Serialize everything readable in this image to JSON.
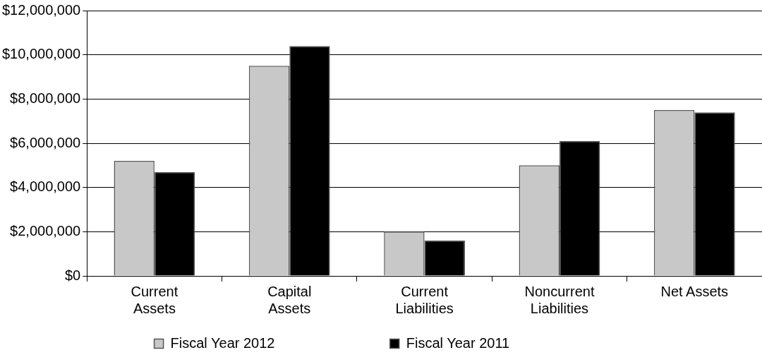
{
  "chart_data": {
    "type": "bar",
    "categories": [
      "Current Assets",
      "Capital Assets",
      "Current Liabilities",
      "Noncurrent Liabilities",
      "Net Assets"
    ],
    "series": [
      {
        "name": "Fiscal Year 2012",
        "color": "#c8c8c8",
        "values": [
          5200000,
          9500000,
          2000000,
          5000000,
          7500000
        ]
      },
      {
        "name": "Fiscal Year 2011",
        "color": "#000000",
        "values": [
          4700000,
          10400000,
          1600000,
          6100000,
          7400000
        ]
      }
    ],
    "ylim": [
      0,
      12000000
    ],
    "yticks": [
      {
        "value": 0,
        "label": "$0"
      },
      {
        "value": 2000000,
        "label": "$2,000,000"
      },
      {
        "value": 4000000,
        "label": "$4,000,000"
      },
      {
        "value": 6000000,
        "label": "$6,000,000"
      },
      {
        "value": 8000000,
        "label": "$8,000,000"
      },
      {
        "value": 10000000,
        "label": "$10,000,000"
      },
      {
        "value": 12000000,
        "label": "$12,000,000"
      }
    ],
    "grid": "y",
    "legend": "bottom"
  }
}
